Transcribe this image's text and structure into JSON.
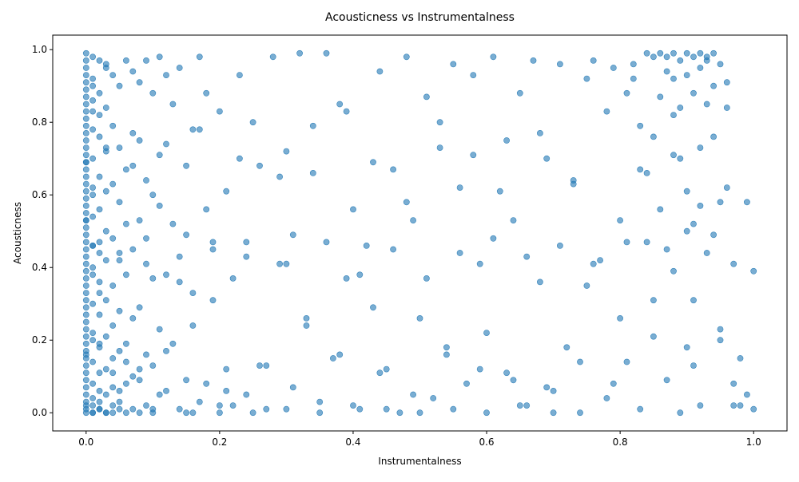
{
  "chart_data": {
    "type": "scatter",
    "title": "Acousticness vs Instrumentalness",
    "xlabel": "Instrumentalness",
    "ylabel": "Acousticness",
    "xlim": [
      -0.05,
      1.05
    ],
    "ylim": [
      -0.05,
      1.04
    ],
    "xticks": [
      "0.0",
      "0.2",
      "0.4",
      "0.6",
      "0.8",
      "1.0"
    ],
    "yticks": [
      "0.0",
      "0.2",
      "0.4",
      "0.6",
      "0.8",
      "1.0"
    ],
    "grid": false,
    "marker_color": "#1f77b4",
    "marker_alpha": 0.6,
    "points_x": [
      0.0,
      0.0,
      0.0,
      0.0,
      0.0,
      0.0,
      0.0,
      0.0,
      0.0,
      0.0,
      0.0,
      0.0,
      0.0,
      0.0,
      0.0,
      0.0,
      0.0,
      0.0,
      0.0,
      0.0,
      0.0,
      0.0,
      0.0,
      0.0,
      0.0,
      0.0,
      0.0,
      0.0,
      0.0,
      0.0,
      0.0,
      0.0,
      0.0,
      0.0,
      0.0,
      0.0,
      0.0,
      0.0,
      0.0,
      0.0,
      0.0,
      0.0,
      0.0,
      0.0,
      0.0,
      0.0,
      0.0,
      0.0,
      0.0,
      0.0,
      0.01,
      0.01,
      0.01,
      0.01,
      0.01,
      0.01,
      0.01,
      0.01,
      0.01,
      0.01,
      0.01,
      0.01,
      0.01,
      0.01,
      0.01,
      0.01,
      0.01,
      0.01,
      0.01,
      0.01,
      0.02,
      0.02,
      0.02,
      0.02,
      0.02,
      0.02,
      0.02,
      0.02,
      0.02,
      0.02,
      0.02,
      0.02,
      0.02,
      0.02,
      0.02,
      0.03,
      0.03,
      0.03,
      0.03,
      0.03,
      0.03,
      0.03,
      0.03,
      0.03,
      0.03,
      0.03,
      0.03,
      0.04,
      0.04,
      0.04,
      0.04,
      0.04,
      0.04,
      0.04,
      0.04,
      0.04,
      0.04,
      0.05,
      0.05,
      0.05,
      0.05,
      0.05,
      0.05,
      0.05,
      0.05,
      0.06,
      0.06,
      0.06,
      0.06,
      0.06,
      0.06,
      0.06,
      0.07,
      0.07,
      0.07,
      0.07,
      0.07,
      0.07,
      0.08,
      0.08,
      0.08,
      0.08,
      0.08,
      0.08,
      0.09,
      0.09,
      0.09,
      0.09,
      0.09,
      0.1,
      0.1,
      0.1,
      0.1,
      0.1,
      0.11,
      0.11,
      0.11,
      0.11,
      0.12,
      0.12,
      0.12,
      0.12,
      0.13,
      0.13,
      0.13,
      0.14,
      0.14,
      0.14,
      0.15,
      0.15,
      0.15,
      0.16,
      0.16,
      0.16,
      0.17,
      0.17,
      0.18,
      0.18,
      0.18,
      0.19,
      0.19,
      0.2,
      0.2,
      0.21,
      0.21,
      0.22,
      0.22,
      0.23,
      0.24,
      0.24,
      0.25,
      0.26,
      0.26,
      0.27,
      0.28,
      0.29,
      0.3,
      0.31,
      0.31,
      0.32,
      0.33,
      0.34,
      0.35,
      0.36,
      0.37,
      0.38,
      0.39,
      0.4,
      0.41,
      0.42,
      0.43,
      0.44,
      0.45,
      0.46,
      0.47,
      0.48,
      0.49,
      0.5,
      0.51,
      0.52,
      0.53,
      0.54,
      0.55,
      0.56,
      0.57,
      0.58,
      0.59,
      0.6,
      0.61,
      0.62,
      0.63,
      0.64,
      0.65,
      0.66,
      0.67,
      0.68,
      0.69,
      0.7,
      0.71,
      0.72,
      0.73,
      0.74,
      0.75,
      0.76,
      0.77,
      0.78,
      0.79,
      0.8,
      0.81,
      0.81,
      0.82,
      0.82,
      0.83,
      0.83,
      0.84,
      0.84,
      0.85,
      0.85,
      0.85,
      0.86,
      0.86,
      0.86,
      0.87,
      0.87,
      0.87,
      0.88,
      0.88,
      0.88,
      0.88,
      0.89,
      0.89,
      0.89,
      0.89,
      0.9,
      0.9,
      0.9,
      0.9,
      0.91,
      0.91,
      0.91,
      0.91,
      0.92,
      0.92,
      0.92,
      0.92,
      0.93,
      0.93,
      0.93,
      0.93,
      0.94,
      0.94,
      0.94,
      0.95,
      0.95,
      0.95,
      0.96,
      0.96,
      0.97,
      0.97,
      0.98,
      0.98,
      0.99,
      1.0,
      0.0,
      0.0,
      0.01,
      0.02,
      0.03,
      0.05,
      0.1,
      0.15,
      0.2,
      0.25,
      0.3,
      0.35,
      0.4,
      0.45,
      0.5,
      0.55,
      0.6,
      0.65,
      0.7,
      0.75,
      0.8,
      0.85,
      0.9,
      0.95,
      0.0,
      0.02,
      0.04,
      0.06,
      0.08,
      0.12,
      0.16,
      0.21,
      0.27,
      0.33,
      0.38,
      0.44,
      0.49,
      0.54,
      0.59,
      0.64,
      0.69,
      0.74,
      0.79,
      0.84,
      0.88,
      0.92,
      0.96,
      0.99,
      0.0,
      0.01,
      0.03,
      0.07,
      0.11,
      0.17,
      0.23,
      0.29,
      0.34,
      0.39,
      0.43,
      0.48,
      0.53,
      0.58,
      0.63,
      0.68,
      0.73,
      0.78,
      0.83,
      0.87,
      0.91,
      0.94,
      0.97,
      1.0,
      0.0,
      0.01,
      0.02,
      0.05,
      0.09,
      0.14,
      0.19,
      0.24,
      0.3,
      0.36,
      0.41,
      0.46,
      0.51,
      0.56,
      0.61,
      0.66,
      0.71,
      0.76,
      0.81,
      0.86,
      0.9,
      0.93,
      0.96,
      0.98
    ],
    "points_y": [
      0.99,
      0.97,
      0.95,
      0.93,
      0.91,
      0.89,
      0.87,
      0.85,
      0.83,
      0.81,
      0.79,
      0.77,
      0.75,
      0.73,
      0.71,
      0.69,
      0.67,
      0.65,
      0.63,
      0.61,
      0.59,
      0.57,
      0.55,
      0.53,
      0.51,
      0.49,
      0.47,
      0.45,
      0.43,
      0.41,
      0.39,
      0.37,
      0.35,
      0.33,
      0.31,
      0.29,
      0.27,
      0.25,
      0.23,
      0.21,
      0.19,
      0.17,
      0.15,
      0.13,
      0.11,
      0.09,
      0.07,
      0.05,
      0.03,
      0.01,
      0.98,
      0.92,
      0.86,
      0.78,
      0.7,
      0.62,
      0.54,
      0.46,
      0.38,
      0.3,
      0.22,
      0.14,
      0.08,
      0.04,
      0.02,
      0.0,
      0.9,
      0.6,
      0.4,
      0.2,
      0.97,
      0.88,
      0.76,
      0.65,
      0.56,
      0.47,
      0.36,
      0.27,
      0.18,
      0.11,
      0.06,
      0.03,
      0.01,
      0.82,
      0.33,
      0.95,
      0.84,
      0.72,
      0.61,
      0.5,
      0.42,
      0.31,
      0.21,
      0.12,
      0.05,
      0.0,
      0.96,
      0.79,
      0.63,
      0.48,
      0.35,
      0.24,
      0.15,
      0.07,
      0.02,
      0.0,
      0.93,
      0.73,
      0.58,
      0.44,
      0.28,
      0.17,
      0.06,
      0.01,
      0.9,
      0.67,
      0.52,
      0.38,
      0.19,
      0.08,
      0.0,
      0.97,
      0.68,
      0.45,
      0.26,
      0.1,
      0.01,
      0.94,
      0.75,
      0.53,
      0.29,
      0.12,
      0.0,
      0.91,
      0.64,
      0.41,
      0.16,
      0.02,
      0.97,
      0.6,
      0.37,
      0.13,
      0.0,
      0.88,
      0.57,
      0.23,
      0.05,
      0.98,
      0.74,
      0.38,
      0.06,
      0.93,
      0.52,
      0.19,
      0.85,
      0.43,
      0.01,
      0.95,
      0.49,
      0.09,
      0.68,
      0.33,
      0.0,
      0.78,
      0.03,
      0.98,
      0.56,
      0.08,
      0.88,
      0.31,
      0.47,
      0.0,
      0.83,
      0.12,
      0.61,
      0.02,
      0.37,
      0.93,
      0.05,
      0.47,
      0.8,
      0.13,
      0.68,
      0.01,
      0.98,
      0.41,
      0.72,
      0.07,
      0.49,
      0.99,
      0.24,
      0.66,
      0.03,
      0.99,
      0.15,
      0.85,
      0.37,
      0.56,
      0.01,
      0.46,
      0.29,
      0.94,
      0.12,
      0.67,
      0.0,
      0.98,
      0.53,
      0.26,
      0.87,
      0.04,
      0.73,
      0.18,
      0.96,
      0.62,
      0.08,
      0.93,
      0.41,
      0.22,
      0.98,
      0.61,
      0.11,
      0.53,
      0.88,
      0.02,
      0.97,
      0.36,
      0.7,
      0.06,
      0.96,
      0.18,
      0.63,
      0.0,
      0.92,
      0.97,
      0.42,
      0.04,
      0.95,
      0.53,
      0.88,
      0.14,
      0.92,
      0.96,
      0.67,
      0.01,
      0.99,
      0.47,
      0.76,
      0.98,
      0.21,
      0.87,
      0.99,
      0.56,
      0.94,
      0.09,
      0.98,
      0.82,
      0.39,
      0.99,
      0.92,
      0.7,
      0.0,
      0.97,
      0.84,
      0.5,
      0.99,
      0.93,
      0.61,
      0.13,
      0.98,
      0.88,
      0.31,
      0.99,
      0.95,
      0.73,
      0.02,
      0.97,
      0.85,
      0.44,
      0.98,
      0.76,
      0.99,
      0.9,
      0.2,
      0.96,
      0.58,
      0.91,
      0.84,
      0.02,
      0.08,
      0.15,
      0.02,
      0.05,
      0.01,
      0.0,
      0.02,
      0.0,
      0.01,
      0.0,
      0.03,
      0.01,
      0.0,
      0.02,
      0.0,
      0.01,
      0.0,
      0.02,
      0.01,
      0.0,
      0.01,
      0.0,
      0.02,
      0.0,
      0.35,
      0.26,
      0.31,
      0.18,
      0.23,
      0.16,
      0.19,
      0.11,
      0.14,
      0.09,
      0.17,
      0.24,
      0.06,
      0.13,
      0.26,
      0.16,
      0.11,
      0.05,
      0.16,
      0.12,
      0.09,
      0.07,
      0.14,
      0.08,
      0.66,
      0.71,
      0.57,
      0.62,
      0.58,
      0.69,
      0.83,
      0.73,
      0.77,
      0.71,
      0.78,
      0.7,
      0.65,
      0.79,
      0.83,
      0.69,
      0.58,
      0.8,
      0.71,
      0.75,
      0.77,
      0.64,
      0.83,
      0.79,
      0.45,
      0.52,
      0.49,
      0.41,
      0.39,
      0.53,
      0.46,
      0.44,
      0.42,
      0.48,
      0.36,
      0.45,
      0.43,
      0.41,
      0.47,
      0.38,
      0.45,
      0.37,
      0.44,
      0.48,
      0.43,
      0.46,
      0.41,
      0.47
    ]
  }
}
